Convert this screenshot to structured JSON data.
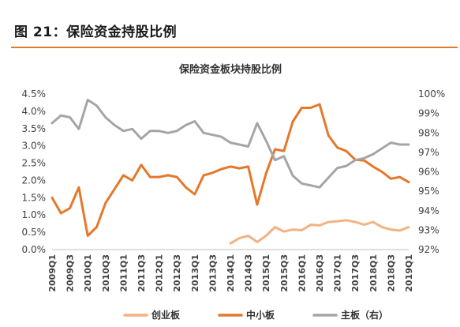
{
  "figure": {
    "title": "图 21：保险资金持股比例"
  },
  "colors": {
    "accent": "#e07a2e",
    "cyb": "#f4b183",
    "zxb": "#e5782a",
    "zb": "#a5a5a5"
  },
  "chart_data": {
    "type": "line",
    "title": "保险资金板块持股比例",
    "x": [
      "2009Q1",
      "2009Q2",
      "2009Q3",
      "2009Q4",
      "2010Q1",
      "2010Q2",
      "2010Q3",
      "2010Q4",
      "2011Q1",
      "2011Q2",
      "2011Q3",
      "2011Q4",
      "2012Q1",
      "2012Q2",
      "2012Q3",
      "2012Q4",
      "2013Q1",
      "2013Q2",
      "2013Q3",
      "2013Q4",
      "2014Q1",
      "2014Q2",
      "2014Q3",
      "2014Q4",
      "2015Q1",
      "2015Q2",
      "2015Q3",
      "2015Q4",
      "2016Q1",
      "2016Q2",
      "2016Q3",
      "2016Q4",
      "2017Q1",
      "2017Q2",
      "2017Q3",
      "2017Q4",
      "2018Q1",
      "2018Q2",
      "2018Q3",
      "2018Q4",
      "2019Q1"
    ],
    "x_tick_labels": [
      "2009Q1",
      "2009Q3",
      "2010Q1",
      "2010Q3",
      "2011Q1",
      "2011Q3",
      "2012Q1",
      "2012Q3",
      "2013Q1",
      "2013Q3",
      "2014Q1",
      "2014Q3",
      "2015Q1",
      "2015Q3",
      "2016Q1",
      "2016Q3",
      "2017Q1",
      "2017Q3",
      "2018Q1",
      "2018Q3",
      "2019Q1"
    ],
    "y_left": {
      "ylim": [
        0.0,
        4.5
      ],
      "ticks": [
        "0.0%",
        "0.5%",
        "1.0%",
        "1.5%",
        "2.0%",
        "2.5%",
        "3.0%",
        "3.5%",
        "4.0%",
        "4.5%"
      ]
    },
    "y_right": {
      "ylim": [
        92,
        100
      ],
      "ticks": [
        "92%",
        "93%",
        "94%",
        "95%",
        "96%",
        "97%",
        "98%",
        "99%",
        "100%"
      ]
    },
    "legend_position": "bottom",
    "series": [
      {
        "name": "创业板",
        "axis": "left",
        "color": "#f4b183",
        "values": [
          null,
          null,
          null,
          null,
          null,
          null,
          null,
          null,
          null,
          null,
          null,
          null,
          null,
          null,
          null,
          null,
          null,
          null,
          null,
          null,
          0.18,
          0.33,
          0.4,
          0.22,
          0.4,
          0.65,
          0.52,
          0.58,
          0.56,
          0.72,
          0.7,
          0.8,
          0.82,
          0.85,
          0.8,
          0.72,
          0.8,
          0.65,
          0.58,
          0.55,
          0.65
        ]
      },
      {
        "name": "中小板",
        "axis": "left",
        "color": "#e5782a",
        "values": [
          1.5,
          1.05,
          1.2,
          1.8,
          0.4,
          0.65,
          1.35,
          1.75,
          2.15,
          2.0,
          2.45,
          2.1,
          2.1,
          2.15,
          2.1,
          1.8,
          1.6,
          2.15,
          2.22,
          2.33,
          2.4,
          2.35,
          2.4,
          1.3,
          2.2,
          2.9,
          2.85,
          3.7,
          4.1,
          4.1,
          4.2,
          3.3,
          2.95,
          2.85,
          2.6,
          2.58,
          2.4,
          2.25,
          2.05,
          2.1,
          1.95
        ]
      },
      {
        "name": "主板（右）",
        "axis": "right",
        "color": "#a5a5a5",
        "values": [
          98.5,
          98.9,
          98.8,
          98.2,
          99.7,
          99.4,
          98.8,
          98.4,
          98.1,
          98.2,
          97.7,
          98.1,
          98.1,
          98.0,
          98.1,
          98.4,
          98.6,
          98.0,
          97.9,
          97.8,
          97.5,
          97.4,
          97.3,
          98.5,
          97.6,
          96.6,
          96.8,
          95.8,
          95.4,
          95.3,
          95.2,
          95.7,
          96.2,
          96.3,
          96.6,
          96.7,
          96.9,
          97.2,
          97.5,
          97.4,
          97.4
        ]
      }
    ]
  }
}
